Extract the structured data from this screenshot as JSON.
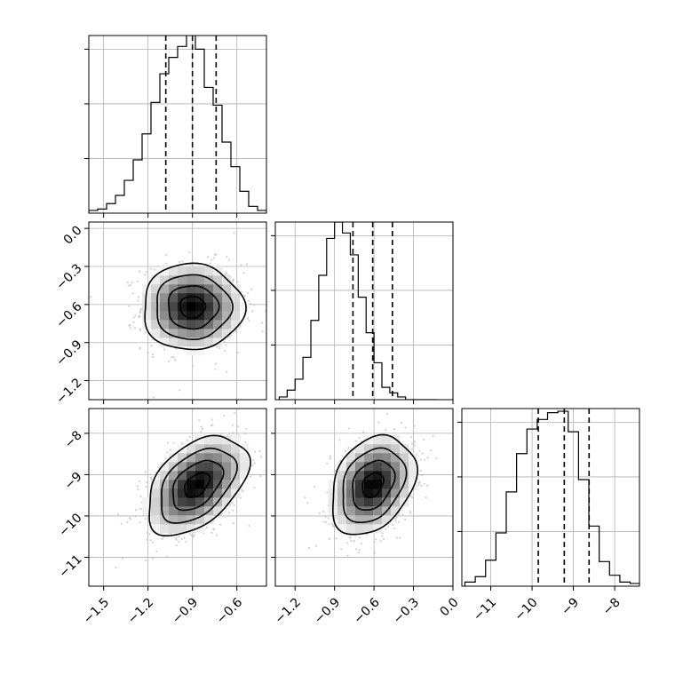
{
  "chart_data": [
    {
      "type": "histogram",
      "panel": "hist-x",
      "x": [
        -1.57,
        -1.51,
        -1.45,
        -1.39,
        -1.33,
        -1.27,
        -1.21,
        -1.15,
        -1.09,
        -1.03,
        -0.97,
        -0.91,
        -0.85,
        -0.79,
        -0.73,
        -0.67,
        -0.61,
        -0.55,
        -0.49,
        -0.43
      ],
      "values": [
        0.02,
        0.03,
        0.07,
        0.13,
        0.24,
        0.39,
        0.58,
        0.81,
        1.02,
        1.14,
        1.22,
        1.31,
        1.2,
        0.92,
        0.79,
        0.52,
        0.34,
        0.16,
        0.05,
        0.02
      ],
      "quantiles": [
        -1.08,
        -0.9,
        -0.74
      ],
      "xlim": [
        -1.6,
        -0.4
      ],
      "ylim": [
        0,
        1.3
      ],
      "xticks": [
        -1.5,
        -1.2,
        -0.9,
        -0.6
      ],
      "yticks": [
        0.4,
        0.8,
        1.2
      ],
      "grid": true
    },
    {
      "type": "histogram",
      "panel": "hist-y",
      "x": [
        -1.29,
        -1.23,
        -1.17,
        -1.11,
        -1.05,
        -0.99,
        -0.93,
        -0.87,
        -0.81,
        -0.75,
        -0.69,
        -0.63,
        -0.57,
        -0.51,
        -0.45,
        -0.39,
        -0.33,
        -0.27,
        -0.21,
        -0.15
      ],
      "values": [
        0.02,
        0.07,
        0.15,
        0.31,
        0.58,
        0.91,
        1.18,
        1.3,
        1.22,
        1.06,
        0.75,
        0.49,
        0.27,
        0.09,
        0.05,
        0.02,
        0.0,
        0.0,
        0.0,
        0.0
      ],
      "quantiles": [
        -0.76,
        -0.61,
        -0.46
      ],
      "xlim": [
        -1.35,
        0.0
      ],
      "ylim": [
        0,
        1.3
      ],
      "xticks": [
        -1.2,
        -0.9,
        -0.6,
        -0.3,
        0.0
      ],
      "yticks": [
        0.4,
        0.8,
        1.2
      ],
      "grid": true
    },
    {
      "type": "histogram",
      "panel": "hist-z",
      "x": [
        -11.5,
        -11.25,
        -11.0,
        -10.75,
        -10.5,
        -10.25,
        -10.0,
        -9.75,
        -9.5,
        -9.25,
        -9.0,
        -8.75,
        -8.5,
        -8.25,
        -8.0,
        -7.75,
        -7.5
      ],
      "values": [
        0.03,
        0.07,
        0.19,
        0.39,
        0.69,
        0.97,
        1.15,
        1.22,
        1.27,
        1.28,
        1.13,
        0.78,
        0.44,
        0.18,
        0.08,
        0.03,
        0.02
      ],
      "quantiles": [
        -9.85,
        -9.22,
        -8.62
      ],
      "xlim": [
        -11.7,
        -7.4
      ],
      "ylim": [
        0,
        1.3
      ],
      "xticks": [
        -11,
        -10,
        -9,
        -8
      ],
      "yticks": [
        0.4,
        0.8,
        1.2
      ],
      "grid": true
    },
    {
      "type": "scatter",
      "panel": "scatter-xy",
      "center": [
        -0.9,
        -0.62
      ],
      "sd": [
        0.17,
        0.17
      ],
      "corr": 0.0,
      "xlim": [
        -1.6,
        -0.4
      ],
      "ylim": [
        -1.35,
        0.05
      ],
      "xticks": [
        -1.5,
        -1.2,
        -0.9,
        -0.6
      ],
      "yticks": [
        0.0,
        -0.3,
        -0.6,
        -0.9,
        -1.2
      ],
      "ytick_labels": [
        "0.0",
        "−0.3",
        "−0.6",
        "−0.9",
        "−1.2"
      ],
      "grid": true
    },
    {
      "type": "scatter",
      "panel": "scatter-xz",
      "center": [
        -0.87,
        -9.25
      ],
      "sd": [
        0.17,
        0.6
      ],
      "corr": 0.45,
      "xlim": [
        -1.6,
        -0.4
      ],
      "ylim": [
        -11.7,
        -7.4
      ],
      "xticks": [
        -1.5,
        -1.2,
        -0.9,
        -0.6
      ],
      "yticks": [
        -8,
        -9,
        -10,
        -11
      ],
      "xtick_labels": [
        "−1.5",
        "−1.2",
        "−0.9",
        "−0.6"
      ],
      "ytick_labels": [
        "−8",
        "−9",
        "−10",
        "−11"
      ],
      "grid": true
    },
    {
      "type": "scatter",
      "panel": "scatter-yz",
      "center": [
        -0.61,
        -9.25
      ],
      "sd": [
        0.16,
        0.6
      ],
      "corr": 0.3,
      "xlim": [
        -1.35,
        0.0
      ],
      "ylim": [
        -11.7,
        -7.4
      ],
      "xticks": [
        -1.2,
        -0.9,
        -0.6,
        -0.3,
        0.0
      ],
      "yticks": [
        -8,
        -9,
        -10,
        -11
      ],
      "xtick_labels": [
        "−1.2",
        "−0.9",
        "−0.6",
        "−0.3",
        "0.0"
      ],
      "grid": true
    }
  ],
  "hist_z_xtick_labels": [
    "−11",
    "−10",
    "−9",
    "−8"
  ]
}
